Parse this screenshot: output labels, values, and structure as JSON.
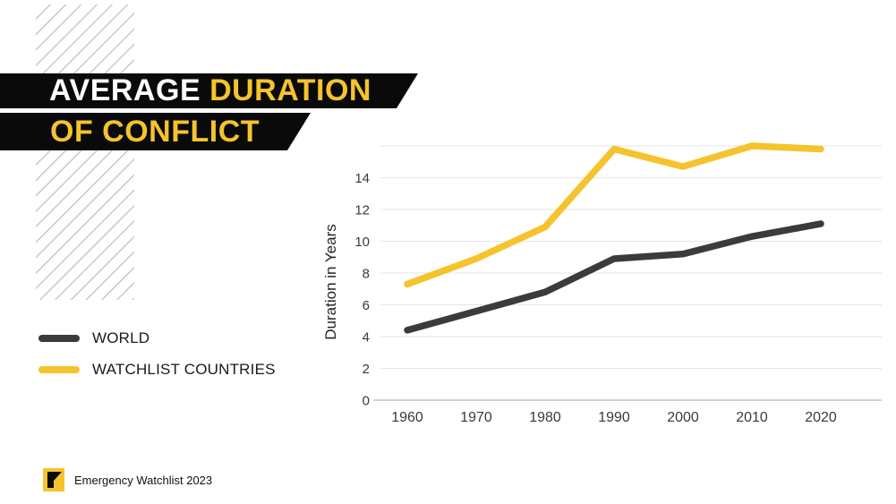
{
  "title": {
    "line1_white": "AVERAGE ",
    "line1_yellow": "DURATION",
    "line2": "OF CONFLICT"
  },
  "footer": {
    "label": "Emergency Watchlist 2023"
  },
  "colors": {
    "accent_yellow": "#f5c32d",
    "line_dark": "#3b3b3b",
    "banner_black": "#0a0a0a",
    "gridline": "#e6e6e6",
    "axis_text": "#3a3a3a"
  },
  "chart_data": {
    "type": "line",
    "x": [
      1960,
      1970,
      1980,
      1990,
      2000,
      2010,
      2020
    ],
    "series": [
      {
        "name": "WORLD",
        "color": "#3b3b3b",
        "values": [
          4.4,
          5.6,
          6.8,
          8.9,
          9.2,
          10.3,
          11.1
        ]
      },
      {
        "name": "WATCHLIST COUNTRIES",
        "color": "#f5c32d",
        "values": [
          7.3,
          8.9,
          10.9,
          15.8,
          14.7,
          16.0,
          15.8
        ]
      }
    ],
    "ylabel": "Duration in Years",
    "xlabel": "",
    "ylim": [
      0,
      16
    ],
    "ygrid": [
      0,
      2,
      4,
      6,
      8,
      10,
      12,
      14,
      16
    ],
    "ytick_labels": [
      0,
      2,
      4,
      6,
      8,
      10,
      12,
      14
    ],
    "grid": true,
    "legend_position": "left"
  }
}
